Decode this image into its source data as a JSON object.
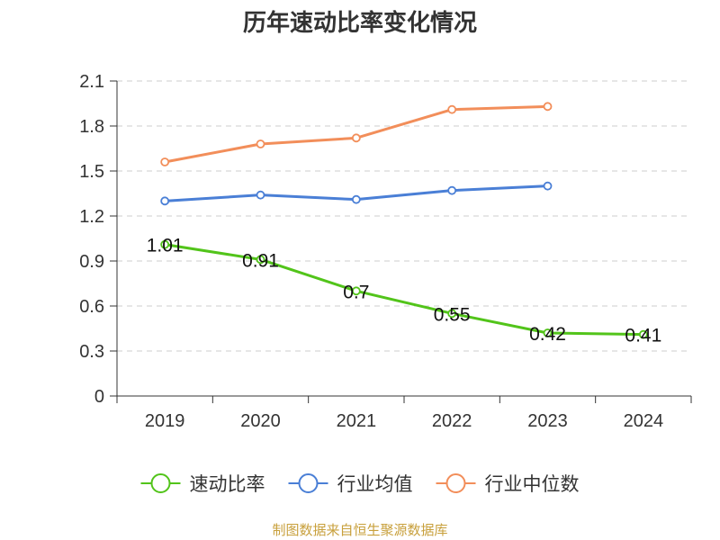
{
  "chart_data": {
    "type": "line",
    "title": "历年速动比率变化情况",
    "source": "制图数据来自恒生聚源数据库",
    "categories": [
      "2019",
      "2020",
      "2021",
      "2022",
      "2023",
      "2024"
    ],
    "ylim": [
      0,
      2.1
    ],
    "yticks": [
      "0",
      "0.3",
      "0.6",
      "0.9",
      "1.2",
      "1.5",
      "1.8",
      "2.1"
    ],
    "grid": true,
    "legend_position": "bottom",
    "series": [
      {
        "name": "速动比率",
        "color": "#52c41a",
        "values": [
          1.01,
          0.91,
          0.7,
          0.55,
          0.42,
          0.41
        ],
        "labels": [
          "1.01",
          "0.91",
          "0.7",
          "0.55",
          "0.42",
          "0.41"
        ]
      },
      {
        "name": "行业均值",
        "color": "#4a7fd6",
        "values": [
          1.3,
          1.34,
          1.31,
          1.37,
          1.4,
          null
        ]
      },
      {
        "name": "行业中位数",
        "color": "#f28e5a",
        "values": [
          1.56,
          1.68,
          1.72,
          1.91,
          1.93,
          null
        ]
      }
    ]
  }
}
